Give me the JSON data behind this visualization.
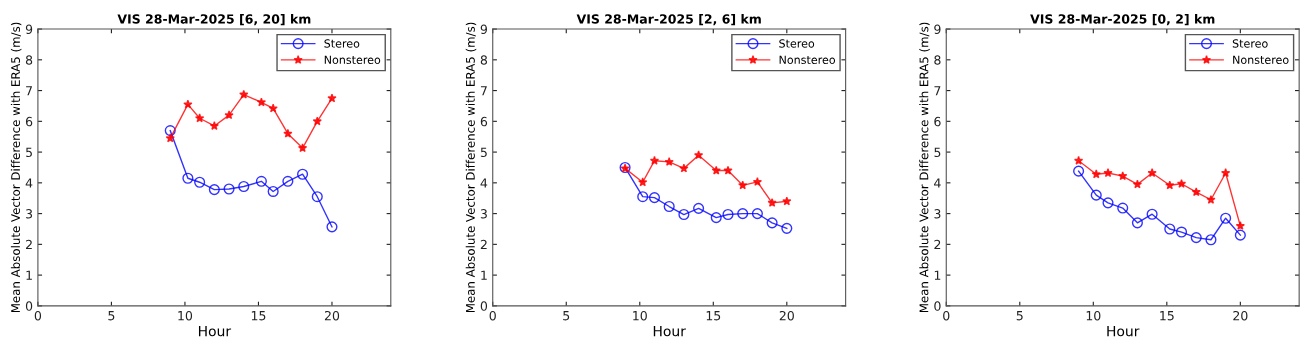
{
  "chart_data": [
    {
      "type": "line",
      "title": "VIS 28-Mar-2025 [6, 20] km",
      "xlabel": "Hour",
      "ylabel": "Mean Absolute Vector Difference with ERA5 (m/s)",
      "x": [
        9,
        10.2,
        11,
        12,
        13,
        14,
        15.2,
        16,
        17,
        18,
        19,
        20
      ],
      "xlim": [
        0,
        24
      ],
      "xticks": [
        0,
        5,
        10,
        15,
        20
      ],
      "ylim": [
        0,
        9
      ],
      "yticks": [
        0,
        1,
        2,
        3,
        4,
        5,
        6,
        7,
        8,
        9
      ],
      "legend": "top right",
      "grid": false,
      "line_style": "solid",
      "series": [
        {
          "name": "Stereo",
          "color": "#0000ff",
          "marker": "circle",
          "values": [
            5.7,
            4.15,
            4.02,
            3.78,
            3.8,
            3.88,
            4.05,
            3.72,
            4.05,
            4.28,
            3.55,
            2.57
          ]
        },
        {
          "name": "Nonstereo",
          "color": "#ff0000",
          "marker": "star",
          "values": [
            5.45,
            6.55,
            6.1,
            5.85,
            6.2,
            6.87,
            6.62,
            6.42,
            5.6,
            5.13,
            6.0,
            6.75
          ]
        }
      ]
    },
    {
      "type": "line",
      "title": "VIS 28-Mar-2025 [2, 6] km",
      "xlabel": "Hour",
      "ylabel": "Mean Absolute Vector Difference with ERA5 (m/s)",
      "x": [
        9,
        10.2,
        11,
        12,
        13,
        14,
        15.2,
        16,
        17,
        18,
        19,
        20
      ],
      "xlim": [
        0,
        24
      ],
      "xticks": [
        0,
        5,
        10,
        15,
        20
      ],
      "ylim": [
        0,
        9
      ],
      "yticks": [
        0,
        1,
        2,
        3,
        4,
        5,
        6,
        7,
        8,
        9
      ],
      "legend": "top right",
      "grid": false,
      "line_style": "solid",
      "series": [
        {
          "name": "Stereo",
          "color": "#0000ff",
          "marker": "circle",
          "values": [
            4.5,
            3.55,
            3.52,
            3.23,
            2.97,
            3.17,
            2.87,
            2.97,
            3.0,
            3.0,
            2.7,
            2.52
          ]
        },
        {
          "name": "Nonstereo",
          "color": "#ff0000",
          "marker": "star",
          "values": [
            4.47,
            4.02,
            4.72,
            4.68,
            4.47,
            4.9,
            4.4,
            4.4,
            3.92,
            4.03,
            3.35,
            3.4
          ]
        }
      ]
    },
    {
      "type": "line",
      "title": "VIS 28-Mar-2025 [0, 2] km",
      "xlabel": "Hour",
      "ylabel": "Mean Absolute Vector Difference with ERA5 (m/s)",
      "x": [
        9,
        10.2,
        11,
        12,
        13,
        14,
        15.2,
        16,
        17,
        18,
        19,
        20
      ],
      "xlim": [
        0,
        24
      ],
      "xticks": [
        0,
        5,
        10,
        15,
        20
      ],
      "ylim": [
        0,
        9
      ],
      "yticks": [
        0,
        1,
        2,
        3,
        4,
        5,
        6,
        7,
        8,
        9
      ],
      "legend": "top right",
      "grid": false,
      "line_style": "solid",
      "series": [
        {
          "name": "Stereo",
          "color": "#0000ff",
          "marker": "circle",
          "values": [
            4.38,
            3.6,
            3.35,
            3.18,
            2.7,
            2.98,
            2.5,
            2.4,
            2.22,
            2.15,
            2.85,
            2.3
          ]
        },
        {
          "name": "Nonstereo",
          "color": "#ff0000",
          "marker": "star",
          "values": [
            4.72,
            4.28,
            4.32,
            4.22,
            3.95,
            4.32,
            3.92,
            3.97,
            3.7,
            3.45,
            4.32,
            2.6
          ]
        }
      ]
    }
  ]
}
